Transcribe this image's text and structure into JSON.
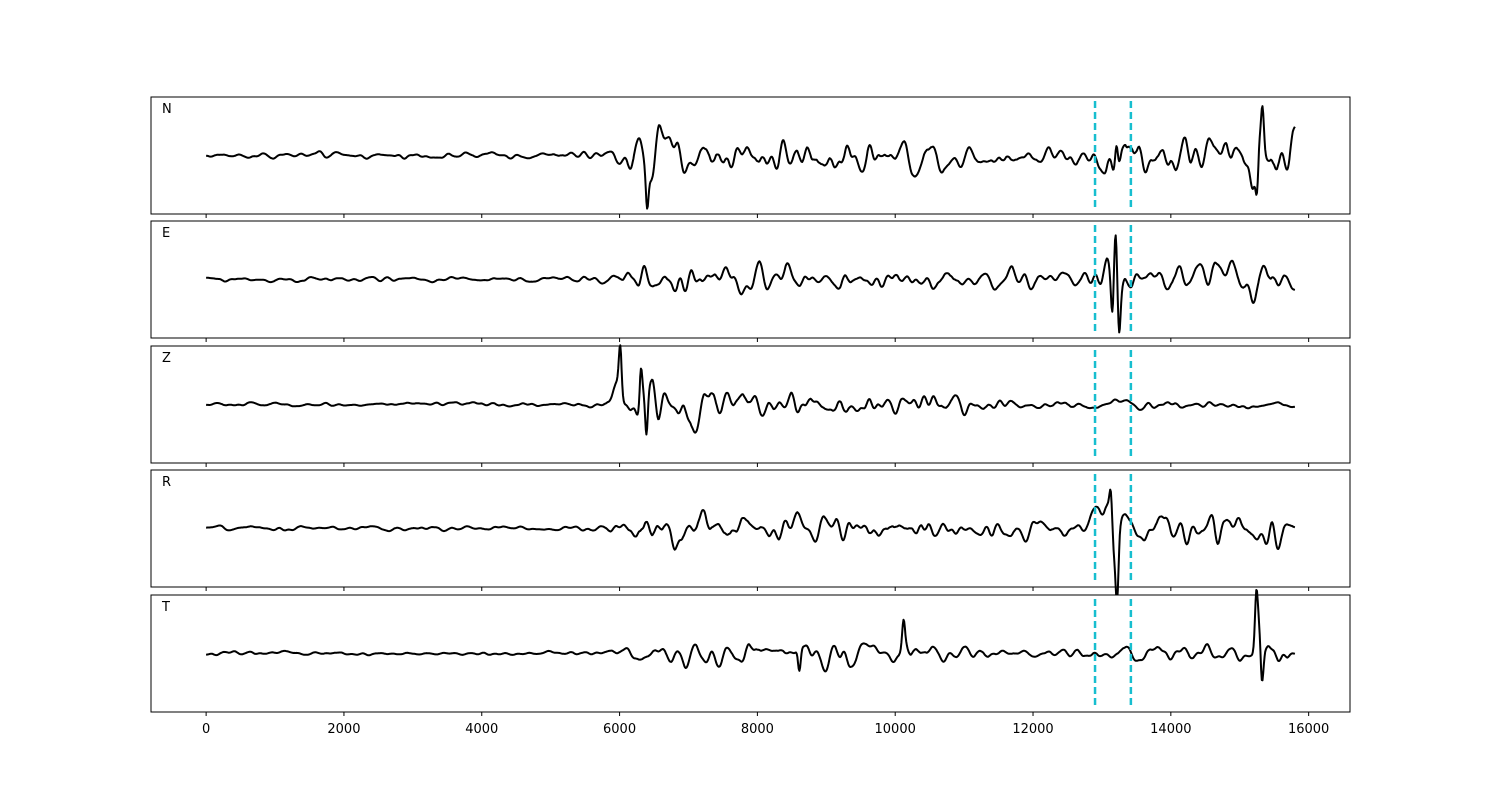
{
  "chart_data": {
    "type": "line",
    "x_range": [
      0,
      15800
    ],
    "xlim": [
      -800,
      16600
    ],
    "x_ticks": [
      0,
      2000,
      4000,
      6000,
      8000,
      10000,
      12000,
      14000,
      16000
    ],
    "x_tick_labels": [
      "0",
      "2000",
      "4000",
      "6000",
      "8000",
      "10000",
      "12000",
      "14000",
      "16000"
    ],
    "markers": [
      12900,
      13420
    ],
    "marker_color": "#17becf",
    "line_color": "#000000",
    "grid": false,
    "series": [
      {
        "name": "N",
        "envelope": [
          [
            0,
            0.06
          ],
          [
            1000,
            0.08
          ],
          [
            2000,
            0.07
          ],
          [
            3000,
            0.06
          ],
          [
            4000,
            0.07
          ],
          [
            5000,
            0.06
          ],
          [
            5800,
            0.12
          ],
          [
            6000,
            0.3
          ],
          [
            6400,
            0.7
          ],
          [
            7000,
            0.45
          ],
          [
            8000,
            0.4
          ],
          [
            9000,
            0.4
          ],
          [
            10000,
            0.45
          ],
          [
            11000,
            0.3
          ],
          [
            12000,
            0.22
          ],
          [
            12800,
            0.3
          ],
          [
            13200,
            0.55
          ],
          [
            14200,
            0.5
          ],
          [
            15000,
            0.45
          ],
          [
            15300,
            0.85
          ],
          [
            15800,
            0.45
          ]
        ],
        "peaks": [
          [
            15250,
            -0.78
          ],
          [
            15330,
            0.68
          ],
          [
            13210,
            0.52
          ],
          [
            6400,
            -0.65
          ]
        ]
      },
      {
        "name": "E",
        "envelope": [
          [
            0,
            0.06
          ],
          [
            1000,
            0.05
          ],
          [
            2000,
            0.05
          ],
          [
            3000,
            0.05
          ],
          [
            4000,
            0.05
          ],
          [
            5000,
            0.05
          ],
          [
            5800,
            0.1
          ],
          [
            6000,
            0.2
          ],
          [
            6400,
            0.3
          ],
          [
            8000,
            0.3
          ],
          [
            10000,
            0.25
          ],
          [
            12000,
            0.2
          ],
          [
            12800,
            0.2
          ],
          [
            13100,
            0.7
          ],
          [
            13400,
            0.2
          ],
          [
            14000,
            0.35
          ],
          [
            15000,
            0.4
          ],
          [
            15800,
            0.35
          ]
        ],
        "peaks": [
          [
            13200,
            0.95
          ],
          [
            13150,
            -0.7
          ],
          [
            13250,
            -0.65
          ]
        ]
      },
      {
        "name": "Z",
        "envelope": [
          [
            0,
            0.04
          ],
          [
            500,
            0.06
          ],
          [
            1000,
            0.05
          ],
          [
            2000,
            0.04
          ],
          [
            3000,
            0.05
          ],
          [
            4000,
            0.05
          ],
          [
            5000,
            0.06
          ],
          [
            5800,
            0.1
          ],
          [
            6000,
            0.6
          ],
          [
            6400,
            0.65
          ],
          [
            7000,
            0.45
          ],
          [
            8000,
            0.35
          ],
          [
            9000,
            0.35
          ],
          [
            10000,
            0.3
          ],
          [
            11000,
            0.25
          ],
          [
            12000,
            0.18
          ],
          [
            13000,
            0.12
          ],
          [
            14000,
            0.12
          ],
          [
            15000,
            0.12
          ],
          [
            15800,
            0.08
          ]
        ],
        "peaks": [
          [
            6010,
            0.8
          ],
          [
            6390,
            -0.88
          ],
          [
            6310,
            0.75
          ]
        ]
      },
      {
        "name": "R",
        "envelope": [
          [
            0,
            0.06
          ],
          [
            1000,
            0.05
          ],
          [
            2000,
            0.05
          ],
          [
            3000,
            0.05
          ],
          [
            4000,
            0.05
          ],
          [
            5000,
            0.05
          ],
          [
            5800,
            0.1
          ],
          [
            6000,
            0.25
          ],
          [
            6400,
            0.45
          ],
          [
            8000,
            0.28
          ],
          [
            9000,
            0.3
          ],
          [
            10000,
            0.28
          ],
          [
            12000,
            0.2
          ],
          [
            12800,
            0.2
          ],
          [
            13100,
            0.75
          ],
          [
            13400,
            0.25
          ],
          [
            14000,
            0.35
          ],
          [
            15000,
            0.4
          ],
          [
            15800,
            0.35
          ]
        ],
        "peaks": [
          [
            13130,
            0.68
          ],
          [
            13220,
            -0.95
          ]
        ]
      },
      {
        "name": "T",
        "envelope": [
          [
            0,
            0.06
          ],
          [
            1000,
            0.07
          ],
          [
            2000,
            0.06
          ],
          [
            3000,
            0.05
          ],
          [
            4000,
            0.05
          ],
          [
            5000,
            0.05
          ],
          [
            5800,
            0.1
          ],
          [
            6000,
            0.25
          ],
          [
            7000,
            0.3
          ],
          [
            8000,
            0.32
          ],
          [
            9000,
            0.28
          ],
          [
            10000,
            0.3
          ],
          [
            11000,
            0.22
          ],
          [
            12000,
            0.12
          ],
          [
            13000,
            0.18
          ],
          [
            13500,
            0.3
          ],
          [
            14500,
            0.25
          ],
          [
            15200,
            0.2
          ],
          [
            15300,
            0.9
          ],
          [
            15800,
            0.15
          ]
        ],
        "peaks": [
          [
            15240,
            0.9
          ],
          [
            15320,
            -0.75
          ],
          [
            10120,
            0.45
          ],
          [
            8610,
            -0.45
          ]
        ]
      }
    ]
  }
}
